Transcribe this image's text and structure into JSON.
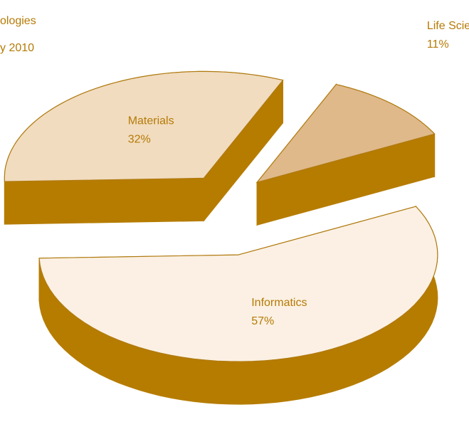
{
  "chart_data": {
    "type": "pie",
    "title": "ologies",
    "subtitle": "y 2010",
    "categories": [
      "Informatics",
      "Materials",
      "Life Sciences"
    ],
    "values": [
      57,
      32,
      11
    ],
    "value_labels": [
      "57%",
      "32%",
      "11%"
    ],
    "colors": [
      "#fbf0e3",
      "#f1dcc0",
      "#dfb98a"
    ],
    "side_color": "#b67c00"
  }
}
